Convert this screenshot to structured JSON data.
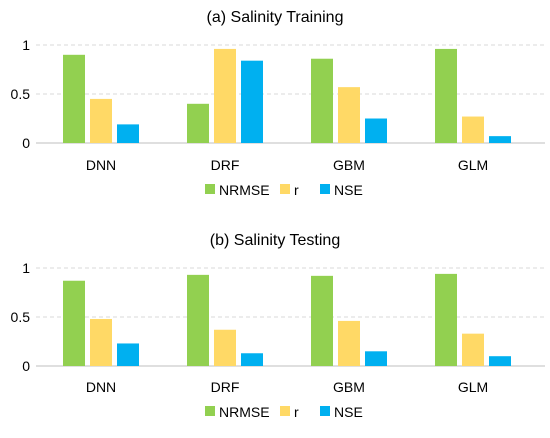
{
  "chart_data": [
    {
      "type": "bar",
      "title": "(a) Salinity Training",
      "categories": [
        "DNN",
        "DRF",
        "GBM",
        "GLM"
      ],
      "series": [
        {
          "name": "NRMSE",
          "color": "#92d050",
          "values": [
            0.9,
            0.4,
            0.86,
            0.96
          ]
        },
        {
          "name": "r",
          "color": "#ffd966",
          "values": [
            0.45,
            0.96,
            0.57,
            0.27
          ]
        },
        {
          "name": "NSE",
          "color": "#00b0f0",
          "values": [
            0.19,
            0.84,
            0.25,
            0.07
          ]
        }
      ],
      "ylim": [
        0,
        1
      ],
      "yticks": [
        "0",
        "0.5",
        "1"
      ],
      "grid": true,
      "legend": "bottom"
    },
    {
      "type": "bar",
      "title": "(b) Salinity Testing",
      "categories": [
        "DNN",
        "DRF",
        "GBM",
        "GLM"
      ],
      "series": [
        {
          "name": "NRMSE",
          "color": "#92d050",
          "values": [
            0.87,
            0.93,
            0.92,
            0.94
          ]
        },
        {
          "name": "r",
          "color": "#ffd966",
          "values": [
            0.48,
            0.37,
            0.46,
            0.33
          ]
        },
        {
          "name": "NSE",
          "color": "#00b0f0",
          "values": [
            0.23,
            0.13,
            0.15,
            0.1
          ]
        }
      ],
      "ylim": [
        0,
        1
      ],
      "yticks": [
        "0",
        "0.5",
        "1"
      ],
      "grid": true,
      "legend": "bottom"
    }
  ]
}
